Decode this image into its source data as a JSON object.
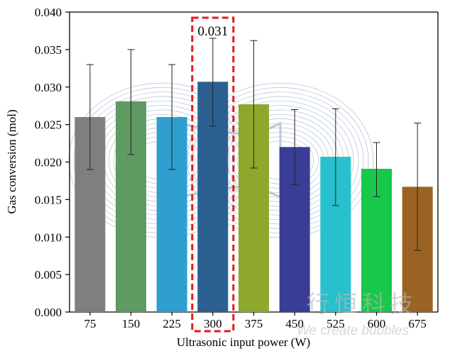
{
  "chart_data": {
    "type": "bar",
    "xlabel": "Ultrasonic input power (W)",
    "ylabel": "Gas conversion (mol)",
    "ylim": [
      0,
      0.04
    ],
    "yticks": [
      "0.000",
      "0.005",
      "0.010",
      "0.015",
      "0.020",
      "0.025",
      "0.030",
      "0.035",
      "0.040"
    ],
    "categories": [
      "75",
      "150",
      "225",
      "300",
      "375",
      "450",
      "525",
      "600",
      "675"
    ],
    "values": [
      0.026,
      0.0281,
      0.026,
      0.0307,
      0.0277,
      0.022,
      0.0207,
      0.0191,
      0.0167
    ],
    "error_high": [
      0.033,
      0.035,
      0.033,
      0.0365,
      0.0362,
      0.027,
      0.0271,
      0.0226,
      0.0252
    ],
    "error_low": [
      0.019,
      0.021,
      0.019,
      0.0248,
      0.0192,
      0.017,
      0.0142,
      0.0154,
      0.0082
    ],
    "bar_colors": [
      "#7f7f7f",
      "#5f9a62",
      "#2f9fd0",
      "#2b5f8f",
      "#8ea82d",
      "#3a3d96",
      "#28c0cc",
      "#18c84a",
      "#9a6323"
    ],
    "highlight": {
      "category": "300",
      "label": "0.031",
      "color": "#e31a1c"
    }
  },
  "watermark": {
    "line1": "行恒科技",
    "line2": "We create bubbles"
  }
}
